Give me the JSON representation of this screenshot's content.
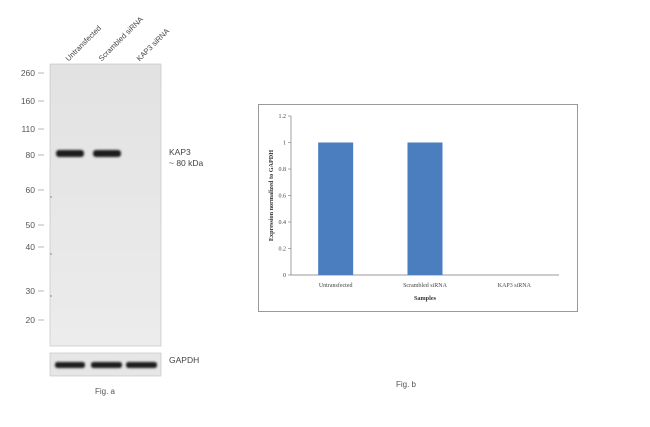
{
  "figure_a": {
    "lanes": [
      "Untransfected",
      "Scrambled siRNA",
      "KAP3 siRNA"
    ],
    "mw_markers": [
      "260",
      "160",
      "110",
      "80",
      "60",
      "50",
      "40",
      "30",
      "20"
    ],
    "band_label_line1": "KAP3",
    "band_label_line2": "~ 80 kDa",
    "loading_label": "GAPDH",
    "caption": "Fig. a"
  },
  "figure_b": {
    "caption": "Fig. b"
  },
  "chart_data": {
    "type": "bar",
    "categories": [
      "Untransfected",
      "Scrambled siRNA",
      "KAP3 siRNA"
    ],
    "values": [
      1,
      1,
      0
    ],
    "title": "",
    "xlabel": "Samples",
    "ylabel": "Expression normalized to GAPDH",
    "ylim": [
      0,
      1.2
    ],
    "yticks": [
      "0",
      "0.2",
      "0.4",
      "0.6",
      "0.8",
      "1",
      "1.2"
    ],
    "bar_color": "#4a7ebf",
    "grid": false,
    "legend": "none"
  }
}
